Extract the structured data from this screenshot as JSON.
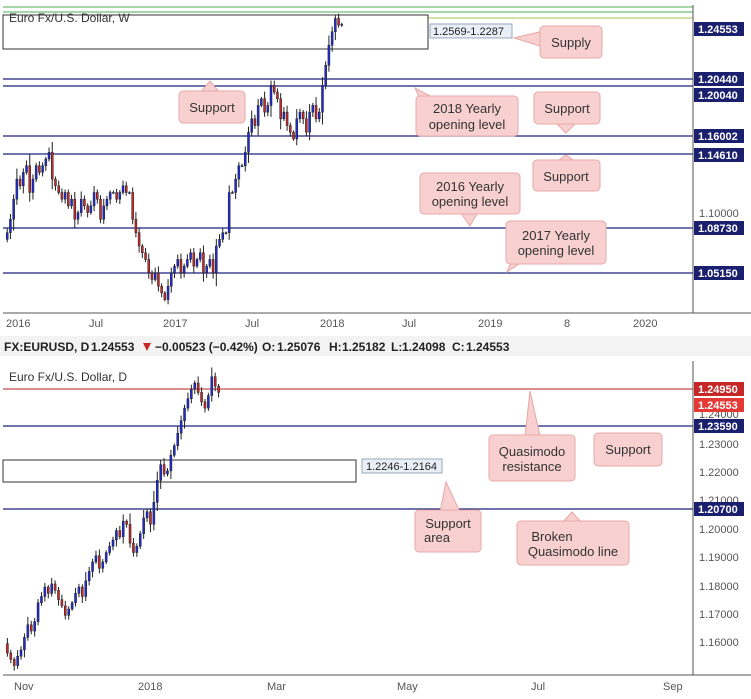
{
  "top_chart": {
    "title": "Euro Fx/U.S. Dollar, W",
    "supply_zone_label": "1.2569-1.2287",
    "price_tags": [
      "1.24553",
      "1.20440",
      "1.20040",
      "1.16002",
      "1.14610",
      "1.08730",
      "1.05150"
    ],
    "axis_ticks": [
      "1.10000"
    ],
    "date_ticks": [
      "2016",
      "Jul",
      "2017",
      "Jul",
      "2018",
      "Jul",
      "2019",
      "8",
      "2020"
    ],
    "callouts": {
      "supply": "Supply",
      "support_left": "Support",
      "yearly_2018": "2018 Yearly opening level",
      "support_right_1": "Support",
      "support_right_2": "Support",
      "yearly_2016": "2016 Yearly opening level",
      "yearly_2017": "2017 Yearly opening level"
    }
  },
  "info_bar": {
    "symbol": "FX:EURUSD, D",
    "last": "1.24553",
    "change": "−0.00523 (−0.42%)",
    "open_label": "O:",
    "open": "1.25076",
    "high_label": "H:",
    "high": "1.25182",
    "low_label": "L:",
    "low": "1.24098",
    "close_label": "C:",
    "close": "1.24553"
  },
  "bottom_chart": {
    "title": "Euro Fx/U.S. Dollar, D",
    "support_zone_label": "1.2246-1.2164",
    "price_tags": [
      "1.24950",
      "1.24553",
      "1.23590",
      "1.20700"
    ],
    "axis_ticks": [
      "1.24000",
      "1.23000",
      "1.22000",
      "1.21000",
      "1.20000",
      "1.19000",
      "1.18000",
      "1.17000",
      "1.16000"
    ],
    "date_ticks": [
      "Nov",
      "2018",
      "Mar",
      "May",
      "Jul",
      "Sep"
    ],
    "callouts": {
      "quasimodo": "Quasimodo resistance",
      "support": "Support",
      "support_area": "Support area",
      "broken_qm": "Broken Quasimodo line"
    }
  },
  "chart_data": [
    {
      "type": "candlestick",
      "title": "Euro Fx/U.S. Dollar, W",
      "ylim": [
        1.03,
        1.26
      ],
      "x_ticks": [
        "2016",
        "Jul",
        "2017",
        "Jul",
        "2018",
        "Jul",
        "2019",
        "8",
        "2020"
      ],
      "horizontal_levels": [
        1.2044,
        1.2004,
        1.16002,
        1.1461,
        1.0873,
        1.0515
      ],
      "zones": [
        {
          "label": "Supply",
          "from": 1.2287,
          "to": 1.2569
        }
      ],
      "last_price": 1.24553,
      "price_path": [
        1.085,
        1.09,
        1.1,
        1.115,
        1.13,
        1.125,
        1.135,
        1.14,
        1.12,
        1.13,
        1.14,
        1.135,
        1.14,
        1.145,
        1.15,
        1.13,
        1.125,
        1.12,
        1.115,
        1.12,
        1.11,
        1.115,
        1.1,
        1.105,
        1.115,
        1.11,
        1.105,
        1.11,
        1.12,
        1.115,
        1.1,
        1.11,
        1.115,
        1.12,
        1.12,
        1.115,
        1.12,
        1.125,
        1.12,
        1.12,
        1.1,
        1.09,
        1.08,
        1.075,
        1.07,
        1.06,
        1.055,
        1.06,
        1.05,
        1.045,
        1.04,
        1.05,
        1.06,
        1.065,
        1.07,
        1.06,
        1.065,
        1.07,
        1.075,
        1.065,
        1.07,
        1.075,
        1.06,
        1.065,
        1.07,
        1.06,
        1.08,
        1.085,
        1.09,
        1.09,
        1.12,
        1.12,
        1.13,
        1.14,
        1.14,
        1.15,
        1.165,
        1.175,
        1.17,
        1.185,
        1.19,
        1.18,
        1.185,
        1.2,
        1.195,
        1.19,
        1.175,
        1.18,
        1.17,
        1.165,
        1.16,
        1.175,
        1.18,
        1.175,
        1.165,
        1.18,
        1.185,
        1.175,
        1.18,
        1.2,
        1.215,
        1.23,
        1.24,
        1.25,
        1.245,
        1.24553
      ]
    },
    {
      "type": "candlestick",
      "title": "Euro Fx/U.S. Dollar, D",
      "ylim": [
        1.155,
        1.255
      ],
      "x_ticks": [
        "Nov",
        "2018",
        "Mar",
        "May",
        "Jul",
        "Sep"
      ],
      "horizontal_levels": [
        1.2495,
        1.2359,
        1.207
      ],
      "zones": [
        {
          "label": "Support area",
          "from": 1.2164,
          "to": 1.2246
        }
      ],
      "last_price": 1.24553,
      "price_path": [
        1.165,
        1.162,
        1.16,
        1.158,
        1.161,
        1.163,
        1.167,
        1.171,
        1.169,
        1.172,
        1.178,
        1.18,
        1.183,
        1.181,
        1.184,
        1.182,
        1.179,
        1.177,
        1.174,
        1.176,
        1.178,
        1.181,
        1.183,
        1.18,
        1.185,
        1.188,
        1.191,
        1.193,
        1.189,
        1.191,
        1.194,
        1.196,
        1.198,
        1.201,
        1.199,
        1.204,
        1.203,
        1.197,
        1.194,
        1.196,
        1.2,
        1.205,
        1.207,
        1.203,
        1.21,
        1.217,
        1.222,
        1.219,
        1.22,
        1.225,
        1.228,
        1.232,
        1.236,
        1.24,
        1.243,
        1.246,
        1.248,
        1.245,
        1.242,
        1.24,
        1.244,
        1.25,
        1.247,
        1.245
      ]
    }
  ]
}
